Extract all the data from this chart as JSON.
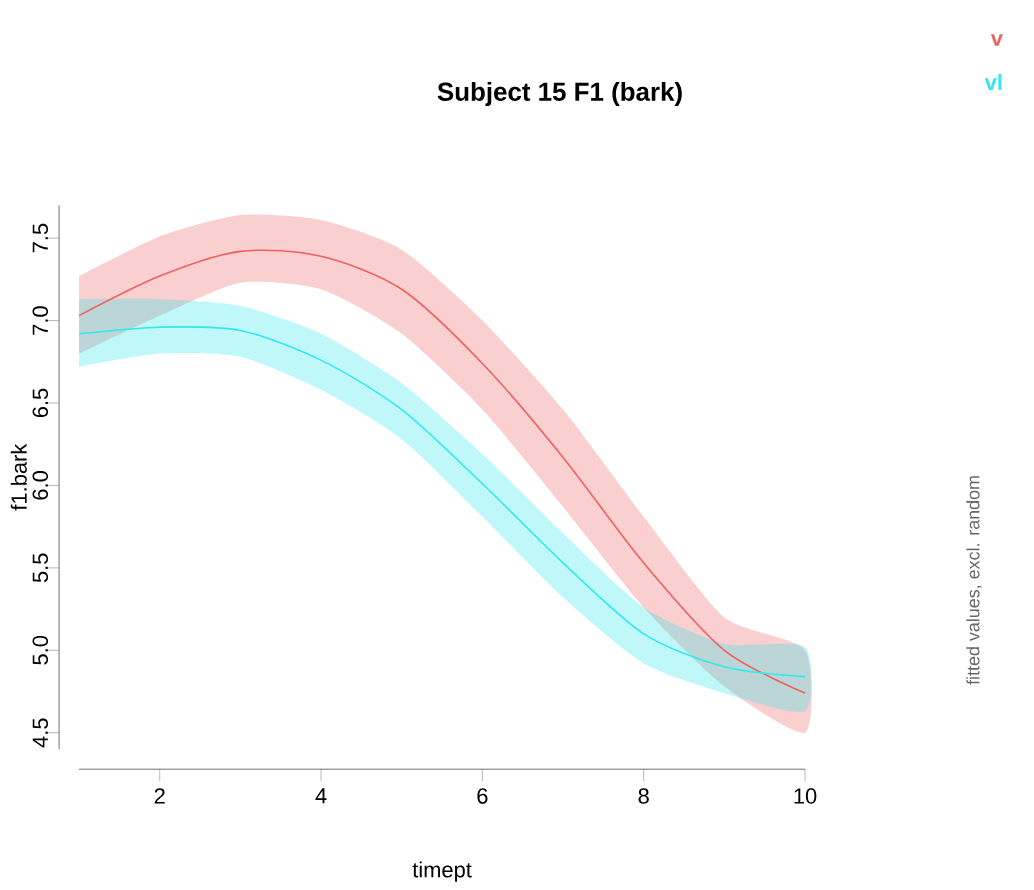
{
  "chart_data": {
    "type": "line",
    "title": "Subject 15 F1 (bark)",
    "xlabel": "timept",
    "ylabel": "f1.bark",
    "annotations": [
      "fitted values, excl. random"
    ],
    "x": [
      1,
      2,
      3,
      4,
      5,
      6,
      7,
      8,
      9,
      10
    ],
    "series": [
      {
        "name": "v",
        "color": "#f06060",
        "values": [
          7.03,
          7.27,
          7.42,
          7.39,
          7.19,
          6.74,
          6.17,
          5.53,
          5.0,
          4.74
        ],
        "lower": [
          6.8,
          7.03,
          7.23,
          7.19,
          6.92,
          6.46,
          5.87,
          5.26,
          4.78,
          4.5
        ],
        "upper": [
          7.27,
          7.51,
          7.64,
          7.61,
          7.43,
          7.0,
          6.46,
          5.81,
          5.2,
          5.0
        ]
      },
      {
        "name": "vl",
        "color": "#30e8f0",
        "values": [
          6.92,
          6.96,
          6.94,
          6.76,
          6.46,
          6.01,
          5.53,
          5.1,
          4.9,
          4.84
        ],
        "lower": [
          6.72,
          6.8,
          6.78,
          6.58,
          6.28,
          5.81,
          5.32,
          4.92,
          4.74,
          4.63
        ],
        "upper": [
          7.13,
          7.13,
          7.09,
          6.92,
          6.62,
          6.19,
          5.71,
          5.26,
          5.04,
          5.02
        ]
      }
    ],
    "xlim": [
      1,
      10
    ],
    "ylim": [
      4.4,
      7.7
    ],
    "xticks": [
      2,
      4,
      6,
      8,
      10
    ],
    "yticks": [
      4.5,
      {
        "value": 5,
        "label": "5.0"
      },
      5.5,
      {
        "value": 6,
        "label": "6.0"
      },
      6.5,
      {
        "value": 7,
        "label": "7.0"
      },
      7.5
    ],
    "legend": "top right",
    "grid": false,
    "marker": "none",
    "line_style": "solid"
  }
}
